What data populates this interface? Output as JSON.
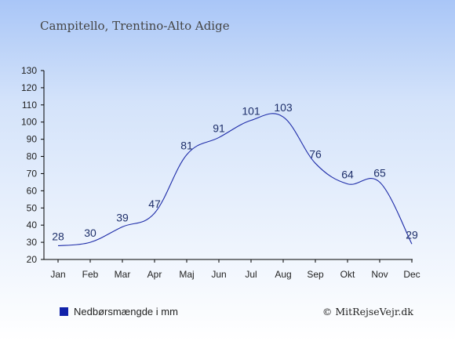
{
  "chart_data": {
    "type": "line",
    "title": "Campitello, Trentino-Alto Adige",
    "categories": [
      "Jan",
      "Feb",
      "Mar",
      "Apr",
      "Maj",
      "Jun",
      "Jul",
      "Aug",
      "Sep",
      "Okt",
      "Nov",
      "Dec"
    ],
    "series": [
      {
        "name": "Nedbørsmængde i mm",
        "values": [
          28,
          30,
          39,
          47,
          81,
          91,
          101,
          103,
          76,
          64,
          65,
          29
        ]
      }
    ],
    "ylim": [
      20,
      130
    ],
    "yticks": [
      20,
      30,
      40,
      50,
      60,
      70,
      80,
      90,
      100,
      110,
      120,
      130
    ],
    "grid": false,
    "legend": "bottom-left",
    "line_color": "#1d2ba8",
    "legend_color": "#1122aa"
  },
  "credit": "© MitRejseVejr.dk"
}
